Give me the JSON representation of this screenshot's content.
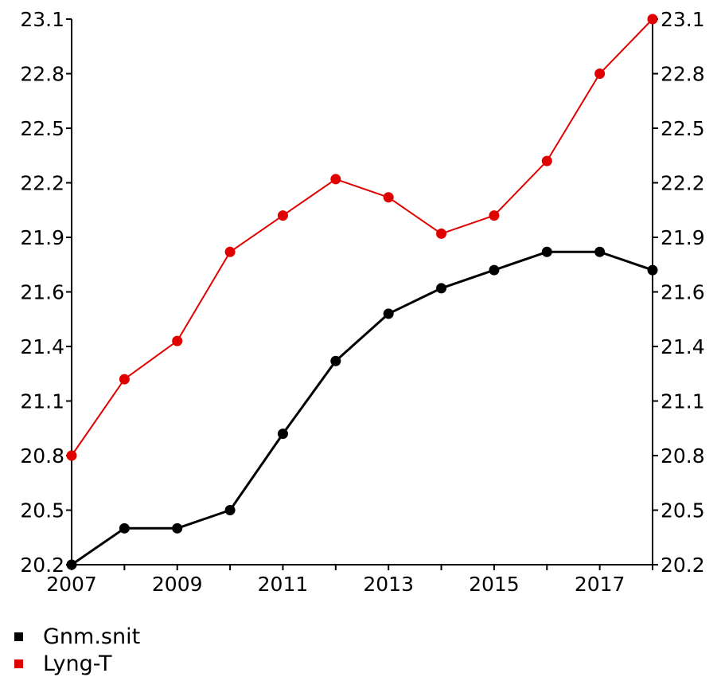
{
  "chart_data": {
    "type": "line",
    "x": [
      2007,
      2008,
      2009,
      2010,
      2011,
      2012,
      2013,
      2014,
      2015,
      2016,
      2017,
      2018
    ],
    "x_tick_labels": [
      "2007",
      "2009",
      "2011",
      "2013",
      "2015",
      "2017"
    ],
    "y_tick_labels": [
      "20.2",
      "20.5",
      "20.8",
      "21.1",
      "21.4",
      "21.6",
      "21.9",
      "22.2",
      "22.5",
      "22.8",
      "23.1"
    ],
    "ylim": [
      20.2,
      23.1
    ],
    "xlim": [
      2007,
      2018
    ],
    "title": "",
    "xlabel": "",
    "ylabel": "",
    "grid": false,
    "legend_position": "bottom-left",
    "series": [
      {
        "name": "Gnm.snit",
        "color": "#000000",
        "values": [
          20.2,
          20.4,
          20.4,
          20.5,
          20.92,
          21.32,
          21.52,
          21.62,
          21.72,
          21.82,
          21.82,
          21.72
        ]
      },
      {
        "name": "Lyng-T",
        "color": "#e00000",
        "values": [
          20.8,
          21.22,
          21.42,
          21.82,
          22.02,
          22.22,
          22.12,
          21.92,
          22.02,
          22.32,
          22.8,
          23.1
        ]
      }
    ]
  }
}
